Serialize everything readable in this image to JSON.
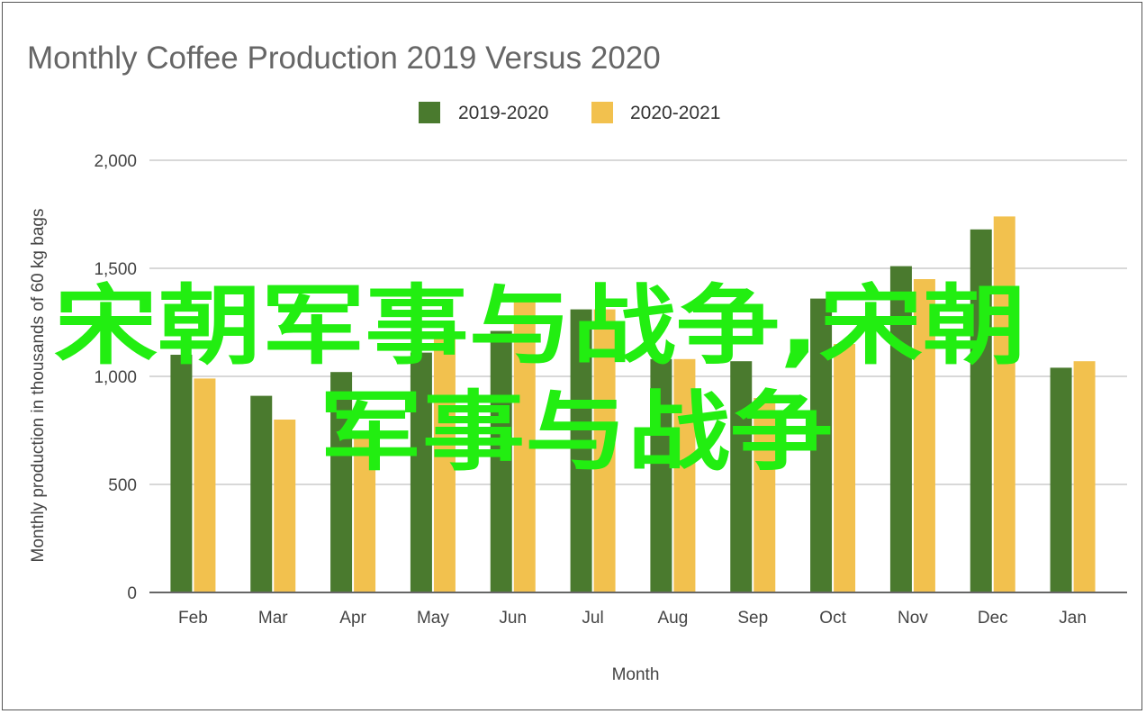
{
  "chart_data": {
    "type": "bar",
    "title": "Monthly Coffee Production 2019 Versus 2020",
    "xlabel": "Month",
    "ylabel": "Monthly production in thousands of 60 kg bags",
    "categories": [
      "Feb",
      "Mar",
      "Apr",
      "May",
      "Jun",
      "Jul",
      "Aug",
      "Sep",
      "Oct",
      "Nov",
      "Dec",
      "Jan"
    ],
    "series": [
      {
        "name": "2019-2020",
        "color": "#4a7a2e",
        "values": [
          1100,
          910,
          1020,
          1110,
          1210,
          1310,
          1080,
          1070,
          1360,
          1510,
          1680,
          1040
        ]
      },
      {
        "name": "2020-2021",
        "color": "#f2c14e",
        "values": [
          990,
          800,
          740,
          1180,
          1360,
          1310,
          1080,
          900,
          1150,
          1450,
          1740,
          1070
        ]
      }
    ],
    "ylim": [
      0,
      2000
    ],
    "yticks": [
      0,
      500,
      1000,
      1500,
      2000
    ],
    "ytick_labels": [
      "0",
      "500",
      "1,000",
      "1,500",
      "2,000"
    ],
    "grid": true,
    "legend": "top-center"
  },
  "watermark": {
    "line1": "宋朝军事与战争,宋朝",
    "line2": "军事与战争"
  }
}
